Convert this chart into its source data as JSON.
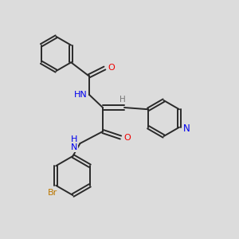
{
  "background_color": "#dcdcdc",
  "bond_color": "#2a2a2a",
  "atom_colors": {
    "N": "#0000ee",
    "O": "#ee0000",
    "Br": "#bb7700",
    "C": "#2a2a2a",
    "H": "#777777"
  },
  "figsize": [
    3.0,
    3.0
  ],
  "dpi": 100
}
